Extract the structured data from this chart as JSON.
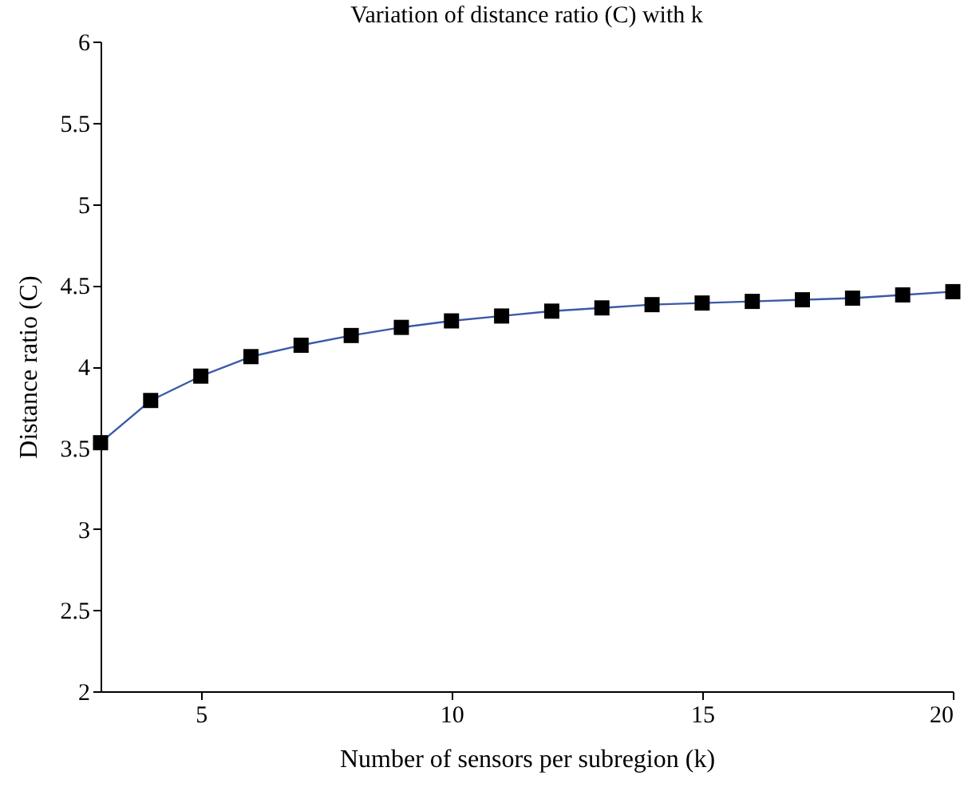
{
  "chart_data": {
    "type": "line",
    "title": "Variation of distance ratio (C) with k",
    "xlabel": "Number of sensors per subregion (k)",
    "ylabel": "Distance ratio (C)",
    "x": [
      3,
      4,
      5,
      6,
      7,
      8,
      9,
      10,
      11,
      12,
      13,
      14,
      15,
      16,
      17,
      18,
      19,
      20
    ],
    "series": [
      {
        "color": "#3a5aa8",
        "values": [
          3.53,
          3.79,
          3.94,
          4.06,
          4.13,
          4.19,
          4.24,
          4.28,
          4.31,
          4.34,
          4.36,
          4.38,
          4.39,
          4.4,
          4.41,
          4.42,
          4.44,
          4.46
        ]
      }
    ],
    "xlim": [
      3,
      20
    ],
    "xticks": [
      5,
      10,
      15,
      20
    ],
    "ylim": [
      2,
      6
    ],
    "yticks": [
      2,
      2.5,
      3,
      3.5,
      4,
      4.5,
      5,
      5.5,
      6
    ],
    "grid": false,
    "legend": false,
    "marker": "square",
    "line_style": "solid"
  }
}
